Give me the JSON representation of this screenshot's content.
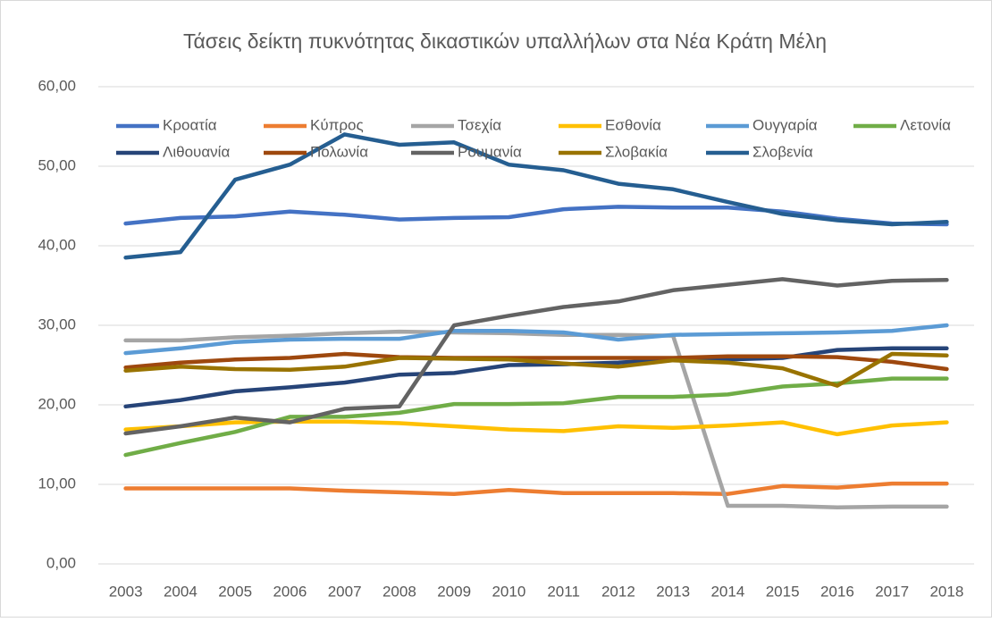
{
  "chart_data": {
    "type": "line",
    "title": "Τάσεις δείκτη πυκνότητας δικαστικών υπαλλήλων στα Νέα Κράτη Μέλη",
    "categories": [
      "2003",
      "2004",
      "2005",
      "2006",
      "2007",
      "2008",
      "2009",
      "2010",
      "2011",
      "2012",
      "2013",
      "2014",
      "2015",
      "2016",
      "2017",
      "2018"
    ],
    "ylim": [
      0,
      60
    ],
    "yticks": [
      {
        "value": 0,
        "label": "0,00"
      },
      {
        "value": 10,
        "label": "10,00"
      },
      {
        "value": 20,
        "label": "20,00"
      },
      {
        "value": 30,
        "label": "30,00"
      },
      {
        "value": 40,
        "label": "40,00"
      },
      {
        "value": 50,
        "label": "50,00"
      },
      {
        "value": 60,
        "label": "60,00"
      }
    ],
    "grid": true,
    "legend": "top",
    "series": [
      {
        "name": "Κροατία",
        "color": "#4472c4",
        "values": [
          42.8,
          43.5,
          43.7,
          44.3,
          43.9,
          43.3,
          43.5,
          43.6,
          44.6,
          44.9,
          44.8,
          44.8,
          44.3,
          43.4,
          42.8,
          42.7
        ]
      },
      {
        "name": "Κύπρος",
        "color": "#ed7d31",
        "values": [
          9.5,
          9.5,
          9.5,
          9.5,
          9.2,
          9.0,
          8.8,
          9.3,
          8.9,
          8.9,
          8.9,
          8.8,
          9.8,
          9.6,
          10.1,
          10.1
        ]
      },
      {
        "name": "Τσεχία",
        "color": "#a5a5a5",
        "values": [
          28.1,
          28.1,
          28.5,
          28.7,
          29.0,
          29.2,
          29.1,
          29.0,
          28.8,
          28.8,
          28.7,
          7.3,
          7.3,
          7.1,
          7.2,
          7.2
        ]
      },
      {
        "name": "Εσθονία",
        "color": "#ffc000",
        "values": [
          16.9,
          17.3,
          17.8,
          17.9,
          17.9,
          17.7,
          17.3,
          16.9,
          16.7,
          17.3,
          17.1,
          17.4,
          17.8,
          16.3,
          17.4,
          17.8
        ]
      },
      {
        "name": "Ουγγαρία",
        "color": "#5b9bd5",
        "values": [
          26.5,
          27.1,
          27.9,
          28.2,
          28.3,
          28.3,
          29.3,
          29.3,
          29.1,
          28.2,
          28.8,
          28.9,
          29.0,
          29.1,
          29.3,
          30.0
        ]
      },
      {
        "name": "Λετονία",
        "color": "#70ad47",
        "values": [
          13.7,
          15.2,
          16.6,
          18.5,
          18.5,
          19.0,
          20.1,
          20.1,
          20.2,
          21.0,
          21.0,
          21.3,
          22.3,
          22.7,
          23.3,
          23.3
        ]
      },
      {
        "name": "Λιθουανία",
        "color": "#264478",
        "values": [
          19.8,
          20.6,
          21.7,
          22.2,
          22.8,
          23.8,
          24.0,
          25.0,
          25.1,
          25.3,
          25.7,
          25.7,
          25.9,
          26.9,
          27.1,
          27.1
        ]
      },
      {
        "name": "Πολωνία",
        "color": "#9e480e",
        "values": [
          24.7,
          25.3,
          25.7,
          25.9,
          26.4,
          26.0,
          25.9,
          25.9,
          25.9,
          25.9,
          25.9,
          26.1,
          26.1,
          26.0,
          25.4,
          24.5
        ]
      },
      {
        "name": "Ρουμανία",
        "color": "#636363",
        "values": [
          16.4,
          17.3,
          18.4,
          17.8,
          19.5,
          19.8,
          30.0,
          31.2,
          32.3,
          33.0,
          34.4,
          35.1,
          35.8,
          35.0,
          35.6,
          35.7
        ]
      },
      {
        "name": "Σλοβακία",
        "color": "#997300",
        "values": [
          24.3,
          24.8,
          24.5,
          24.4,
          24.8,
          25.9,
          25.8,
          25.7,
          25.2,
          24.8,
          25.6,
          25.3,
          24.6,
          22.4,
          26.4,
          26.2
        ]
      },
      {
        "name": "Σλοβενία",
        "color": "#255e91",
        "values": [
          38.5,
          39.2,
          48.3,
          50.2,
          54.0,
          52.7,
          53.0,
          50.2,
          49.5,
          47.8,
          47.1,
          45.5,
          44.0,
          43.2,
          42.7,
          43.0
        ]
      }
    ]
  }
}
